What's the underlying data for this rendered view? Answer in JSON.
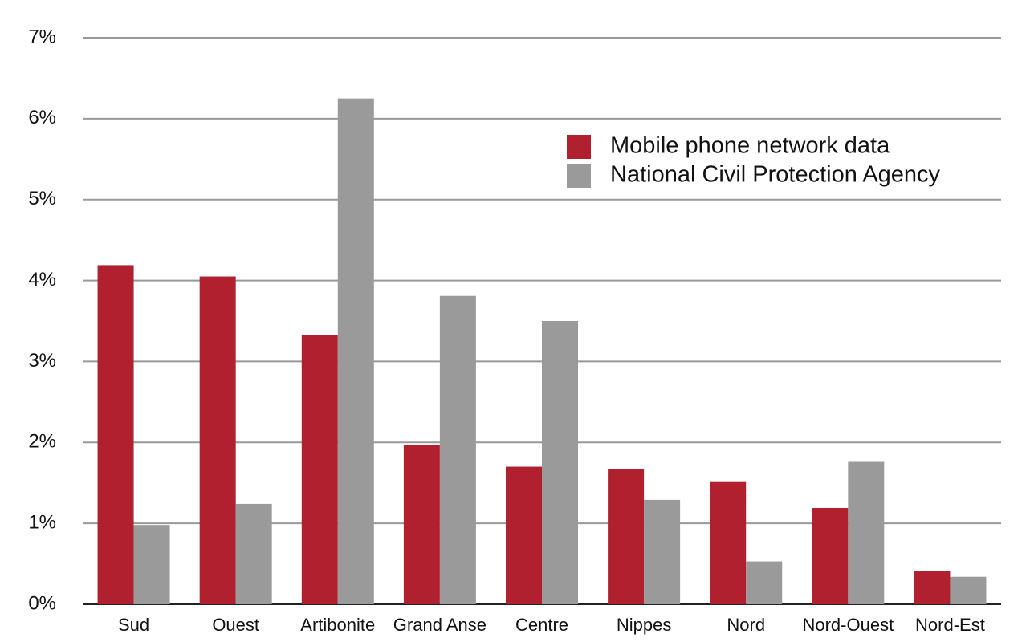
{
  "chart_data": {
    "type": "bar",
    "categories": [
      "Sud",
      "Ouest",
      "Artibonite",
      "Grand Anse",
      "Centre",
      "Nippes",
      "Nord",
      "Nord-Ouest",
      "Nord-Est"
    ],
    "series": [
      {
        "name": "Mobile phone network data",
        "color": "#b0202e",
        "values": [
          4.19,
          4.05,
          3.33,
          1.97,
          1.7,
          1.67,
          1.51,
          1.19,
          0.41
        ]
      },
      {
        "name": "National Civil Protection Agency",
        "color": "#9a9a9a",
        "values": [
          0.98,
          1.24,
          6.25,
          3.81,
          3.5,
          1.29,
          0.53,
          1.76,
          0.34
        ]
      }
    ],
    "ylim": [
      0,
      7
    ],
    "yticks": [
      {
        "value": 0,
        "label": "0%"
      },
      {
        "value": 1,
        "label": "1%"
      },
      {
        "value": 2,
        "label": "2%"
      },
      {
        "value": 3,
        "label": "3%"
      },
      {
        "value": 4,
        "label": "4%"
      },
      {
        "value": 5,
        "label": "5%"
      },
      {
        "value": 6,
        "label": "6%"
      },
      {
        "value": 7,
        "label": "7%"
      }
    ],
    "grid": true,
    "legend": "upper right"
  }
}
